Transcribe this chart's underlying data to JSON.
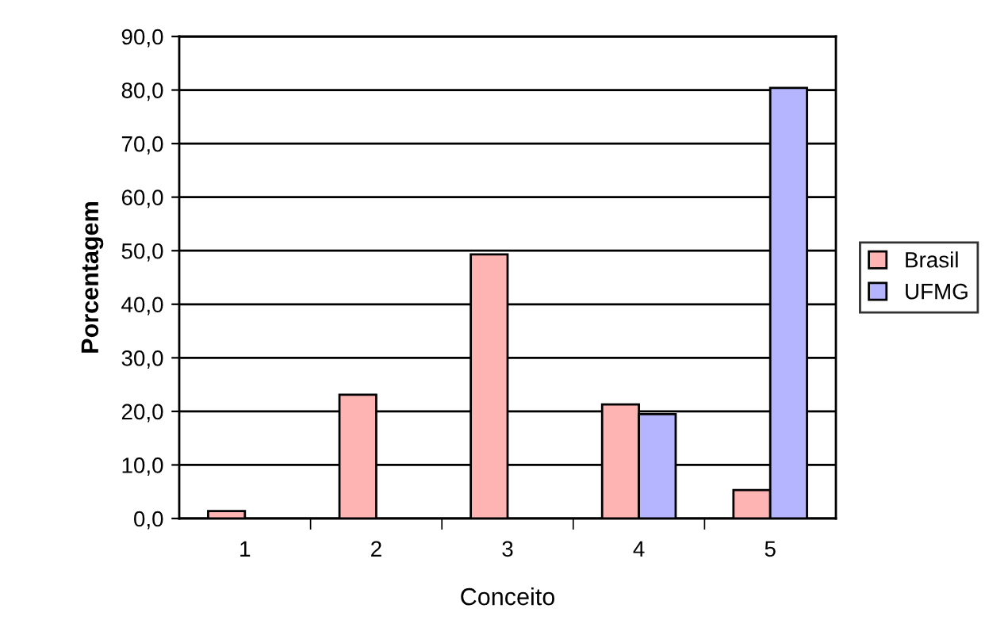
{
  "chart_data": {
    "type": "bar",
    "xlabel": "Conceito",
    "ylabel": "Porcentagem",
    "categories": [
      "1",
      "2",
      "3",
      "4",
      "5"
    ],
    "series": [
      {
        "name": "Brasil",
        "color": "#ffb4b4",
        "values": [
          1.4,
          23.1,
          49.3,
          21.3,
          5.3
        ]
      },
      {
        "name": "UFMG",
        "color": "#b4b4ff",
        "values": [
          null,
          null,
          null,
          19.5,
          80.4
        ]
      }
    ],
    "ylim": [
      0,
      90
    ],
    "yticks": [
      {
        "value": 0,
        "label": "0,0"
      },
      {
        "value": 10,
        "label": "10,0"
      },
      {
        "value": 20,
        "label": "20,0"
      },
      {
        "value": 30,
        "label": "30,0"
      },
      {
        "value": 40,
        "label": "40,0"
      },
      {
        "value": 50,
        "label": "50,0"
      },
      {
        "value": 60,
        "label": "60,0"
      },
      {
        "value": 70,
        "label": "70,0"
      },
      {
        "value": 80,
        "label": "80,0"
      },
      {
        "value": 90,
        "label": "90,0"
      }
    ],
    "grid": "y",
    "legend": "right"
  }
}
